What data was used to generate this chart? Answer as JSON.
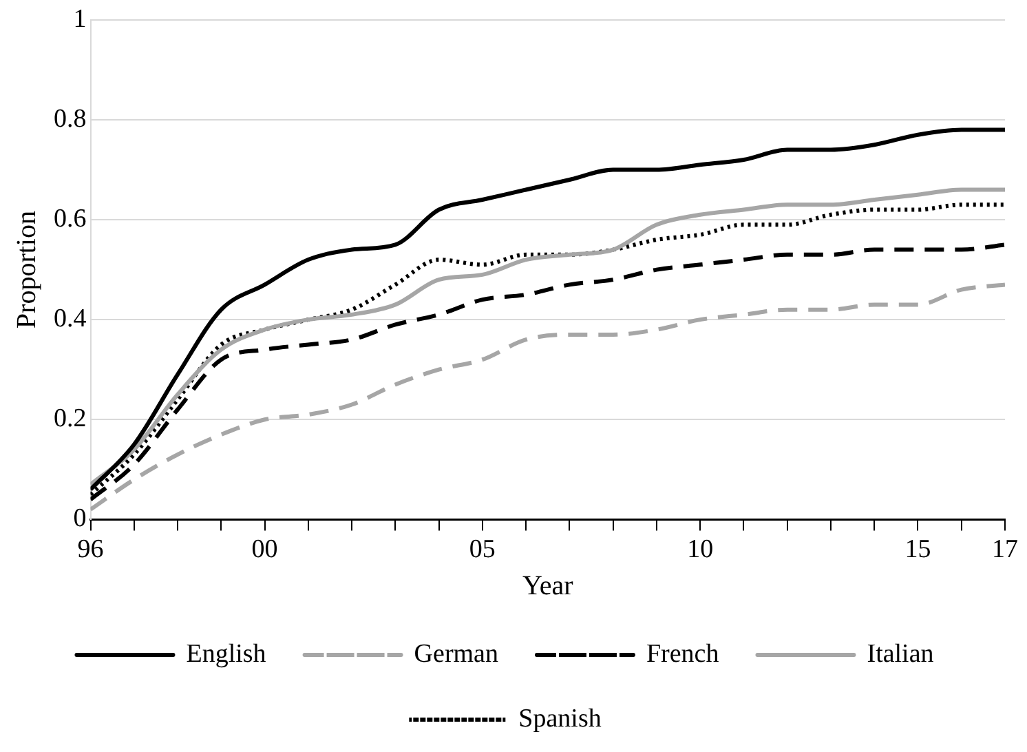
{
  "chart_data": {
    "type": "line",
    "xlabel": "Year",
    "ylabel": "Proportion",
    "x": [
      1996,
      1997,
      1998,
      1999,
      2000,
      2001,
      2002,
      2003,
      2004,
      2005,
      2006,
      2007,
      2008,
      2009,
      2010,
      2011,
      2012,
      2013,
      2014,
      2015,
      2016,
      2017
    ],
    "xlim": [
      1996,
      2017
    ],
    "xticks": [
      {
        "value": 1996,
        "label": "96"
      },
      {
        "value": 1997,
        "label": null
      },
      {
        "value": 1998,
        "label": null
      },
      {
        "value": 1999,
        "label": null
      },
      {
        "value": 2000,
        "label": "00"
      },
      {
        "value": 2001,
        "label": null
      },
      {
        "value": 2002,
        "label": null
      },
      {
        "value": 2003,
        "label": null
      },
      {
        "value": 2004,
        "label": null
      },
      {
        "value": 2005,
        "label": "05"
      },
      {
        "value": 2006,
        "label": null
      },
      {
        "value": 2007,
        "label": null
      },
      {
        "value": 2008,
        "label": null
      },
      {
        "value": 2009,
        "label": null
      },
      {
        "value": 2010,
        "label": "10"
      },
      {
        "value": 2011,
        "label": null
      },
      {
        "value": 2012,
        "label": null
      },
      {
        "value": 2013,
        "label": null
      },
      {
        "value": 2014,
        "label": null
      },
      {
        "value": 2015,
        "label": "15"
      },
      {
        "value": 2016,
        "label": null
      },
      {
        "value": 2017,
        "label": "17"
      }
    ],
    "ylim": [
      0,
      1
    ],
    "yticks": [
      0,
      0.2,
      0.4,
      0.6,
      0.8,
      1
    ],
    "grid": "y",
    "legend": "bottom",
    "marker": "none",
    "series": [
      {
        "name": "English",
        "color": "#000000",
        "line_style": "solid",
        "values": [
          0.06,
          0.15,
          0.29,
          0.42,
          0.47,
          0.52,
          0.54,
          0.55,
          0.62,
          0.64,
          0.66,
          0.68,
          0.7,
          0.7,
          0.71,
          0.72,
          0.74,
          0.74,
          0.75,
          0.77,
          0.78,
          0.78
        ]
      },
      {
        "name": "German",
        "color": "#a6a6a6",
        "line_style": "dashed",
        "values": [
          0.02,
          0.08,
          0.13,
          0.17,
          0.2,
          0.21,
          0.23,
          0.27,
          0.3,
          0.32,
          0.36,
          0.37,
          0.37,
          0.38,
          0.4,
          0.41,
          0.42,
          0.42,
          0.43,
          0.43,
          0.46,
          0.47
        ]
      },
      {
        "name": "French",
        "color": "#000000",
        "line_style": "dashed",
        "values": [
          0.04,
          0.11,
          0.22,
          0.32,
          0.34,
          0.35,
          0.36,
          0.39,
          0.41,
          0.44,
          0.45,
          0.47,
          0.48,
          0.5,
          0.51,
          0.52,
          0.53,
          0.53,
          0.54,
          0.54,
          0.54,
          0.55
        ]
      },
      {
        "name": "Italian",
        "color": "#a6a6a6",
        "line_style": "solid",
        "values": [
          0.07,
          0.14,
          0.25,
          0.34,
          0.38,
          0.4,
          0.41,
          0.43,
          0.48,
          0.49,
          0.52,
          0.53,
          0.54,
          0.59,
          0.61,
          0.62,
          0.63,
          0.63,
          0.64,
          0.65,
          0.66,
          0.66
        ]
      },
      {
        "name": "Spanish",
        "color": "#000000",
        "line_style": "dotted",
        "values": [
          0.05,
          0.13,
          0.24,
          0.35,
          0.38,
          0.4,
          0.42,
          0.47,
          0.52,
          0.51,
          0.53,
          0.53,
          0.54,
          0.56,
          0.57,
          0.59,
          0.59,
          0.61,
          0.62,
          0.62,
          0.63,
          0.63
        ]
      }
    ]
  }
}
